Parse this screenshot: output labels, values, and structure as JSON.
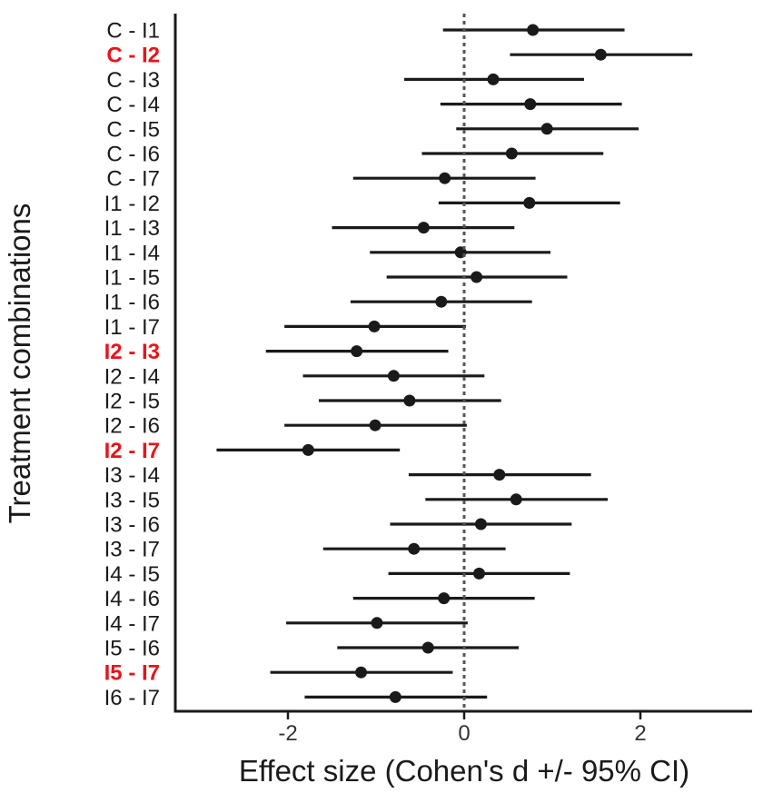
{
  "chart_data": {
    "type": "forest",
    "xlabel": "Effect size (Cohen's d +/- 95% CI)",
    "ylabel": "Treatment combinations",
    "xlim": [
      -3.3,
      3.3
    ],
    "xticks": [
      -2,
      0,
      2
    ],
    "xtick_labels": [
      "-2",
      "0",
      "2"
    ],
    "reference_line": 0,
    "highlight_color": "#e8141b",
    "text_color": "#1a1a1a",
    "rows": [
      {
        "label": "C - I1",
        "estimate": 0.78,
        "lower": -0.24,
        "upper": 1.82,
        "highlight": false
      },
      {
        "label": "C - I2",
        "estimate": 1.55,
        "lower": 0.52,
        "upper": 2.59,
        "highlight": true
      },
      {
        "label": "C - I3",
        "estimate": 0.33,
        "lower": -0.68,
        "upper": 1.36,
        "highlight": false
      },
      {
        "label": "C - I4",
        "estimate": 0.75,
        "lower": -0.27,
        "upper": 1.79,
        "highlight": false
      },
      {
        "label": "C - I5",
        "estimate": 0.94,
        "lower": -0.09,
        "upper": 1.98,
        "highlight": false
      },
      {
        "label": "C - I6",
        "estimate": 0.54,
        "lower": -0.48,
        "upper": 1.58,
        "highlight": false
      },
      {
        "label": "C - I7",
        "estimate": -0.22,
        "lower": -1.26,
        "upper": 0.81,
        "highlight": false
      },
      {
        "label": "I1 - I2",
        "estimate": 0.74,
        "lower": -0.29,
        "upper": 1.77,
        "highlight": false
      },
      {
        "label": "I1 - I3",
        "estimate": -0.46,
        "lower": -1.5,
        "upper": 0.57,
        "highlight": false
      },
      {
        "label": "I1 - I4",
        "estimate": -0.04,
        "lower": -1.07,
        "upper": 0.98,
        "highlight": false
      },
      {
        "label": "I1 - I5",
        "estimate": 0.14,
        "lower": -0.88,
        "upper": 1.17,
        "highlight": false
      },
      {
        "label": "I1 - I6",
        "estimate": -0.26,
        "lower": -1.29,
        "upper": 0.77,
        "highlight": false
      },
      {
        "label": "I1 - I7",
        "estimate": -1.02,
        "lower": -2.04,
        "upper": 0.02,
        "highlight": false
      },
      {
        "label": "I2 - I3",
        "estimate": -1.22,
        "lower": -2.25,
        "upper": -0.18,
        "highlight": true
      },
      {
        "label": "I2 - I4",
        "estimate": -0.8,
        "lower": -1.83,
        "upper": 0.23,
        "highlight": false
      },
      {
        "label": "I2 - I5",
        "estimate": -0.62,
        "lower": -1.65,
        "upper": 0.42,
        "highlight": false
      },
      {
        "label": "I2 - I6",
        "estimate": -1.01,
        "lower": -2.04,
        "upper": 0.03,
        "highlight": false
      },
      {
        "label": "I2 - I7",
        "estimate": -1.77,
        "lower": -2.81,
        "upper": -0.73,
        "highlight": true
      },
      {
        "label": "I3 - I4",
        "estimate": 0.4,
        "lower": -0.63,
        "upper": 1.44,
        "highlight": false
      },
      {
        "label": "I3 - I5",
        "estimate": 0.59,
        "lower": -0.44,
        "upper": 1.63,
        "highlight": false
      },
      {
        "label": "I3 - I6",
        "estimate": 0.19,
        "lower": -0.84,
        "upper": 1.22,
        "highlight": false
      },
      {
        "label": "I3 - I7",
        "estimate": -0.57,
        "lower": -1.6,
        "upper": 0.47,
        "highlight": false
      },
      {
        "label": "I4 - I5",
        "estimate": 0.17,
        "lower": -0.86,
        "upper": 1.2,
        "highlight": false
      },
      {
        "label": "I4 - I6",
        "estimate": -0.23,
        "lower": -1.26,
        "upper": 0.8,
        "highlight": false
      },
      {
        "label": "I4 - I7",
        "estimate": -0.99,
        "lower": -2.02,
        "upper": 0.04,
        "highlight": false
      },
      {
        "label": "I5 - I6",
        "estimate": -0.41,
        "lower": -1.44,
        "upper": 0.62,
        "highlight": false
      },
      {
        "label": "I5 - I7",
        "estimate": -1.17,
        "lower": -2.2,
        "upper": -0.13,
        "highlight": true
      },
      {
        "label": "I6 - I7",
        "estimate": -0.78,
        "lower": -1.81,
        "upper": 0.26,
        "highlight": false
      }
    ]
  }
}
